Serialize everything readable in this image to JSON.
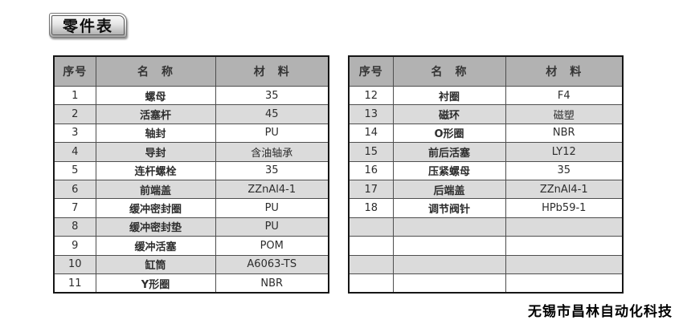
{
  "title": {
    "label": "零件表"
  },
  "table_headers": [
    "序号",
    "名　称",
    "材　料"
  ],
  "left_table": {
    "rows": [
      [
        "1",
        "螺母",
        "35"
      ],
      [
        "2",
        "活塞杆",
        "45"
      ],
      [
        "3",
        "轴封",
        "PU"
      ],
      [
        "4",
        "导封",
        "含油轴承"
      ],
      [
        "5",
        "连杆螺栓",
        "35"
      ],
      [
        "6",
        "前端盖",
        "ZZnAl4-1"
      ],
      [
        "7",
        "缓冲密封圈",
        "PU"
      ],
      [
        "8",
        "缓冲密封垫",
        "PU"
      ],
      [
        "9",
        "缓冲活塞",
        "POM"
      ],
      [
        "10",
        "缸筒",
        "A6063-TS"
      ],
      [
        "11",
        "Y形圈",
        "NBR"
      ]
    ]
  },
  "right_table": {
    "rows": [
      [
        "12",
        "衬圈",
        "F4"
      ],
      [
        "13",
        "磁环",
        "磁塑"
      ],
      [
        "14",
        "O形圈",
        "NBR"
      ],
      [
        "15",
        "前后活塞",
        "LY12"
      ],
      [
        "16",
        "压紧螺母",
        "35"
      ],
      [
        "17",
        "后端盖",
        "ZZnAl4-1"
      ],
      [
        "18",
        "调节阀针",
        "HPb59-1"
      ],
      [
        "",
        "",
        ""
      ],
      [
        "",
        "",
        ""
      ],
      [
        "",
        "",
        ""
      ],
      [
        "",
        "",
        ""
      ]
    ]
  },
  "footer": {
    "company": "无锡市昌林自动化科技"
  },
  "colors": {
    "header_bg": "#b2b2b2",
    "alt_row_bg": "#dbdbdb",
    "grid_line": "#4e4e4e",
    "table_border": "#161616"
  }
}
